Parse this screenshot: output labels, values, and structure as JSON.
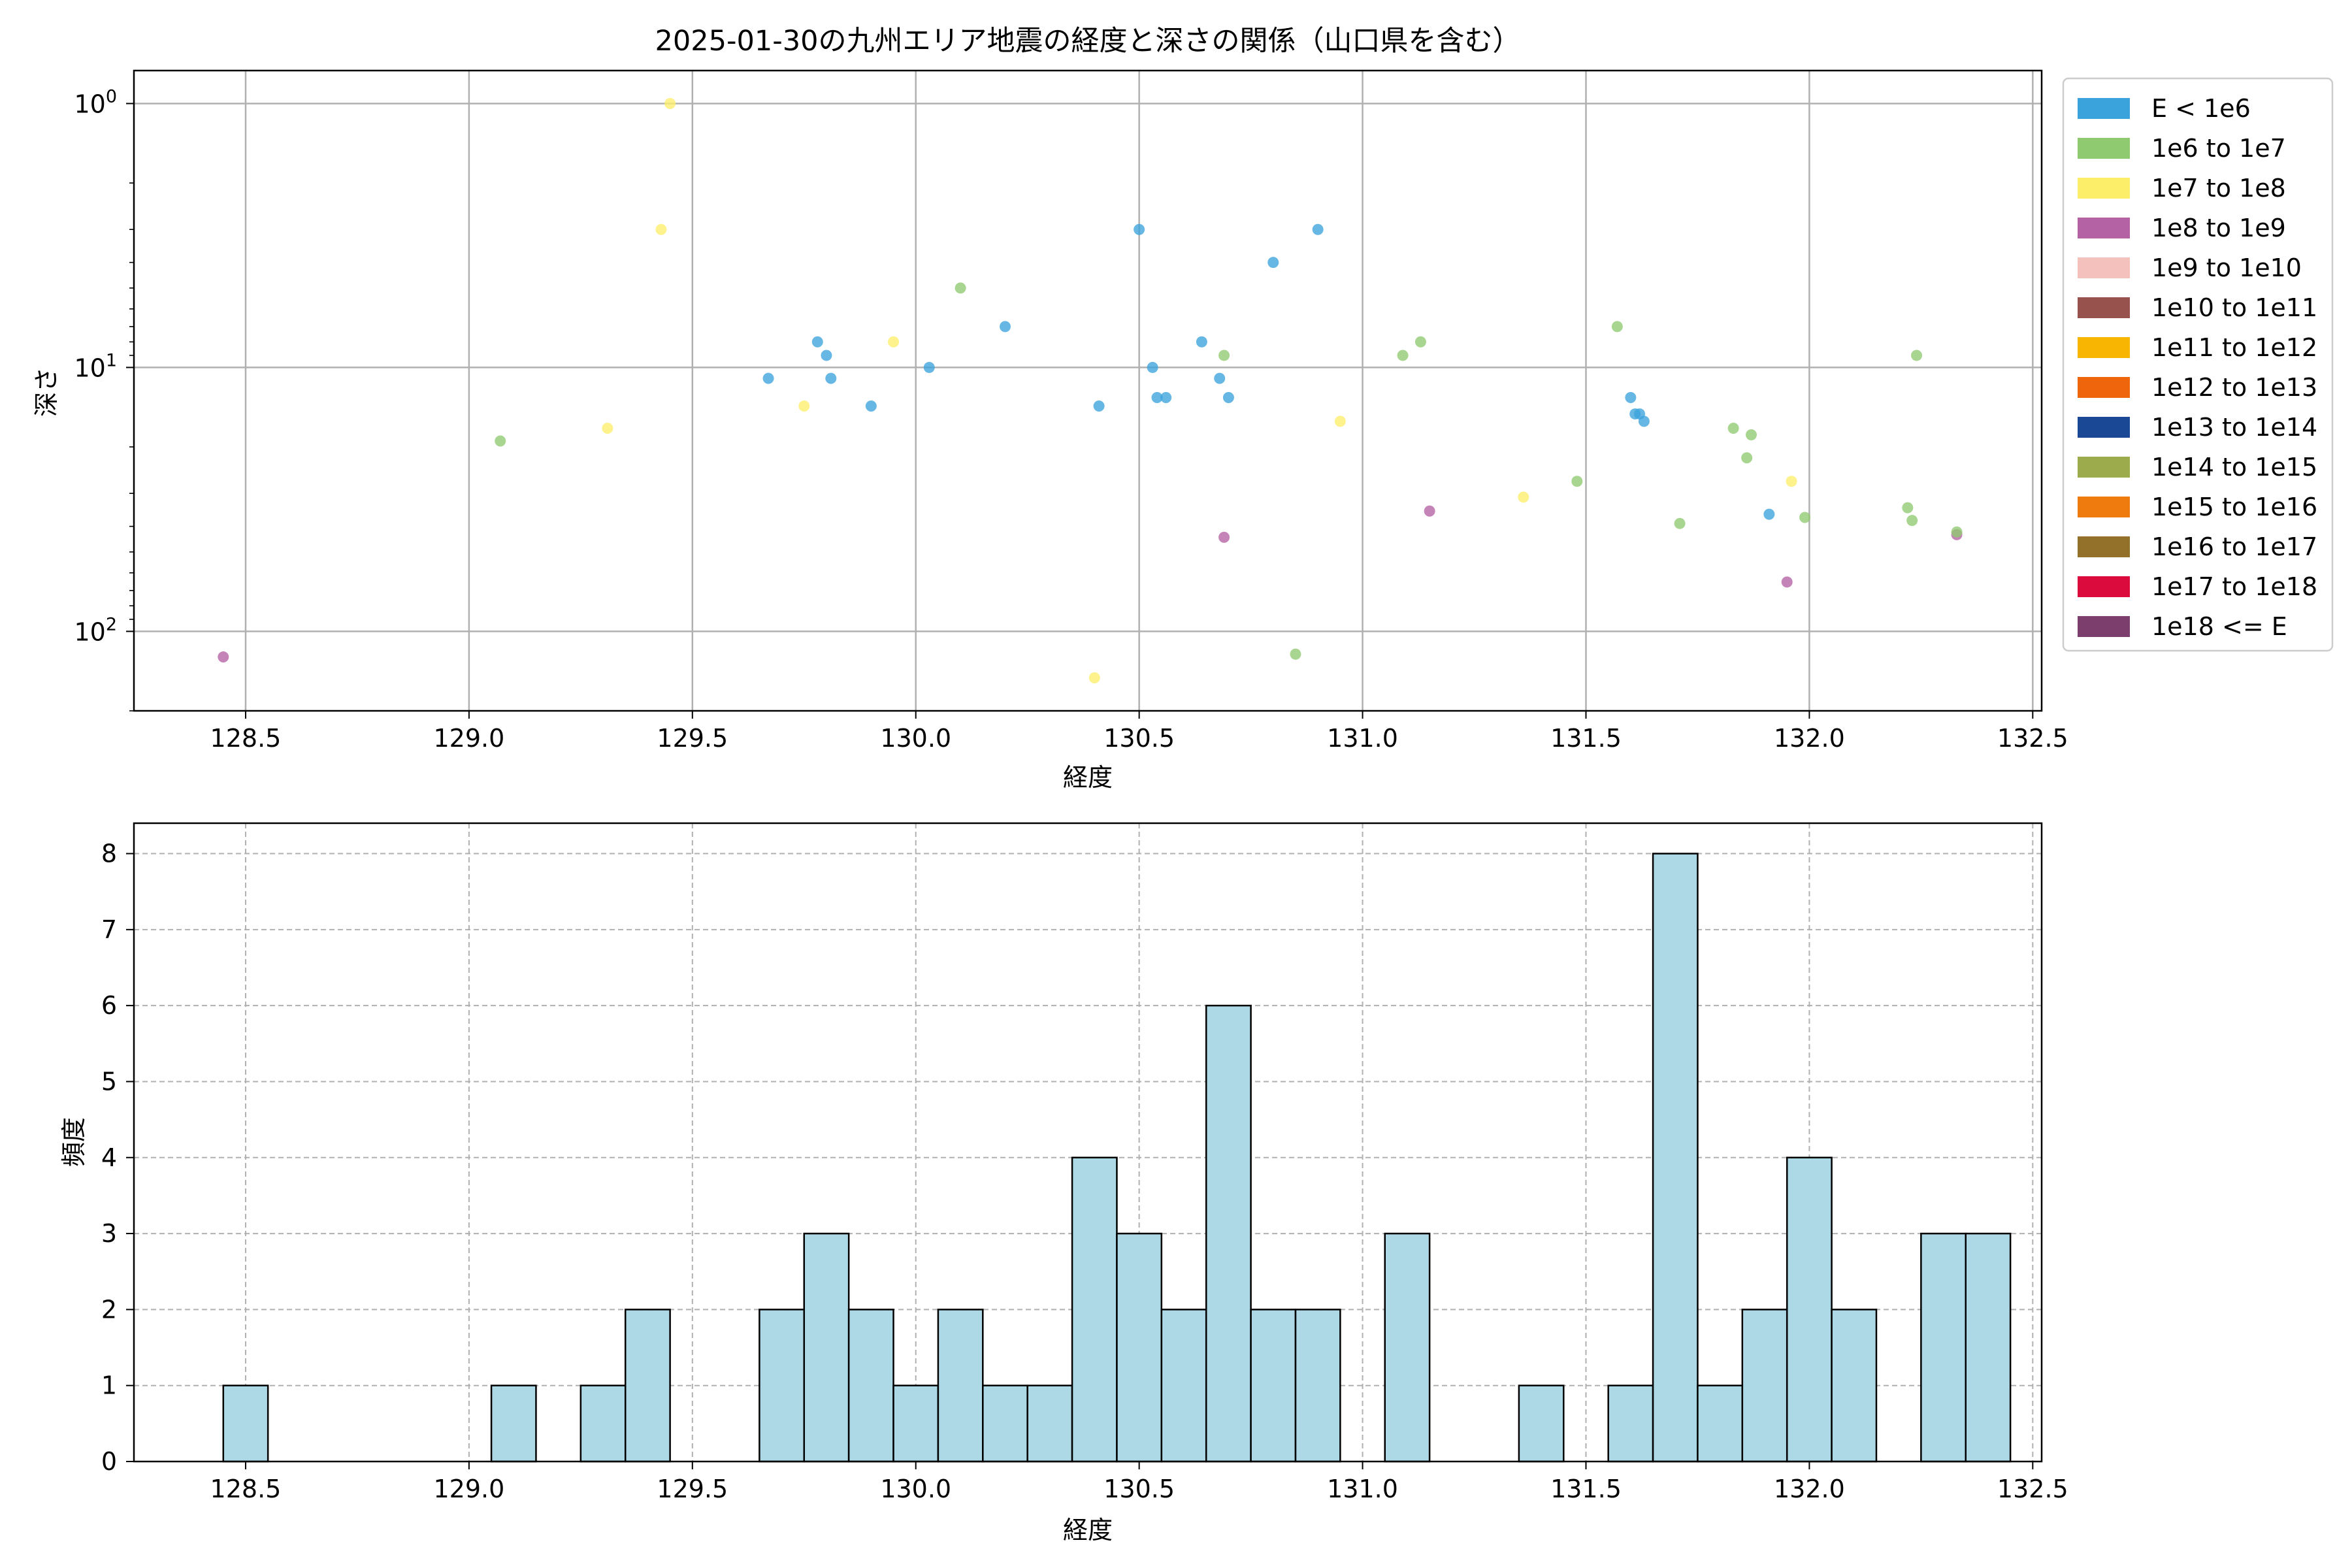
{
  "chart_data": [
    {
      "type": "scatter",
      "title": "2025-01-30の九州エリア地震の経度と深さの関係（山口県を含む）",
      "xlabel": "経度",
      "ylabel": "深さ",
      "xlim": [
        128.25,
        132.52
      ],
      "ylim": [
        200,
        0.75
      ],
      "yscale": "log",
      "y_inverted": true,
      "x_ticks": [
        128.5,
        129.0,
        129.5,
        130.0,
        130.5,
        131.0,
        131.5,
        132.0,
        132.5
      ],
      "x_tick_labels": [
        "128.5",
        "129.0",
        "129.5",
        "130.0",
        "130.5",
        "131.0",
        "131.5",
        "132.0",
        "132.5"
      ],
      "y_ticks": [
        1,
        10,
        100
      ],
      "y_tick_labels": [
        "10",
        "10",
        "10"
      ],
      "y_tick_exponents": [
        "0",
        "1",
        "2"
      ],
      "grid": true,
      "legend_position": "outside-right",
      "legend": [
        {
          "label": "E < 1e6",
          "color": "#3ba3dc"
        },
        {
          "label": "1e6 to 1e7",
          "color": "#8fc970"
        },
        {
          "label": "1e7 to 1e8",
          "color": "#fdee6a"
        },
        {
          "label": "1e8 to 1e9",
          "color": "#b562a4"
        },
        {
          "label": "1e9 to 1e10",
          "color": "#f5c1bd"
        },
        {
          "label": "1e10 to 1e11",
          "color": "#98524e"
        },
        {
          "label": "1e11 to 1e12",
          "color": "#f8b501"
        },
        {
          "label": "1e12 to 1e13",
          "color": "#ef650b"
        },
        {
          "label": "1e13 to 1e14",
          "color": "#1b4894"
        },
        {
          "label": "1e14 to 1e15",
          "color": "#9cac4c"
        },
        {
          "label": "1e15 to 1e16",
          "color": "#ef7a0d"
        },
        {
          "label": "1e16 to 1e17",
          "color": "#94712b"
        },
        {
          "label": "1e17 to 1e18",
          "color": "#dc0b3d"
        },
        {
          "label": "1e18 <= E",
          "color": "#7b3e6d"
        }
      ],
      "points": [
        {
          "x": 128.45,
          "y": 125,
          "c": 3
        },
        {
          "x": 129.07,
          "y": 19,
          "c": 1
        },
        {
          "x": 129.31,
          "y": 17,
          "c": 2
        },
        {
          "x": 129.43,
          "y": 3,
          "c": 2
        },
        {
          "x": 129.45,
          "y": 1,
          "c": 2
        },
        {
          "x": 129.67,
          "y": 11,
          "c": 0
        },
        {
          "x": 129.75,
          "y": 14,
          "c": 2
        },
        {
          "x": 129.78,
          "y": 8,
          "c": 0
        },
        {
          "x": 129.8,
          "y": 9,
          "c": 0
        },
        {
          "x": 129.81,
          "y": 11,
          "c": 0
        },
        {
          "x": 129.9,
          "y": 14,
          "c": 0
        },
        {
          "x": 129.95,
          "y": 8,
          "c": 2
        },
        {
          "x": 130.03,
          "y": 10,
          "c": 0
        },
        {
          "x": 130.1,
          "y": 5,
          "c": 1
        },
        {
          "x": 130.2,
          "y": 7,
          "c": 0
        },
        {
          "x": 130.4,
          "y": 150,
          "c": 2
        },
        {
          "x": 130.41,
          "y": 14,
          "c": 0
        },
        {
          "x": 130.5,
          "y": 3,
          "c": 0
        },
        {
          "x": 130.53,
          "y": 10,
          "c": 0
        },
        {
          "x": 130.54,
          "y": 13,
          "c": 0
        },
        {
          "x": 130.56,
          "y": 13,
          "c": 0
        },
        {
          "x": 130.64,
          "y": 8,
          "c": 0
        },
        {
          "x": 130.68,
          "y": 11,
          "c": 0
        },
        {
          "x": 130.69,
          "y": 44,
          "c": 3
        },
        {
          "x": 130.69,
          "y": 9,
          "c": 1
        },
        {
          "x": 130.7,
          "y": 13,
          "c": 0
        },
        {
          "x": 130.8,
          "y": 4,
          "c": 0
        },
        {
          "x": 130.85,
          "y": 122,
          "c": 1
        },
        {
          "x": 130.9,
          "y": 3,
          "c": 0
        },
        {
          "x": 130.95,
          "y": 16,
          "c": 2
        },
        {
          "x": 131.09,
          "y": 9,
          "c": 1
        },
        {
          "x": 131.13,
          "y": 8,
          "c": 1
        },
        {
          "x": 131.15,
          "y": 35,
          "c": 3
        },
        {
          "x": 131.36,
          "y": 31,
          "c": 2
        },
        {
          "x": 131.48,
          "y": 27,
          "c": 1
        },
        {
          "x": 131.57,
          "y": 7,
          "c": 1
        },
        {
          "x": 131.6,
          "y": 13,
          "c": 0
        },
        {
          "x": 131.61,
          "y": 15,
          "c": 0
        },
        {
          "x": 131.62,
          "y": 15,
          "c": 0
        },
        {
          "x": 131.63,
          "y": 16,
          "c": 0
        },
        {
          "x": 131.71,
          "y": 39,
          "c": 1
        },
        {
          "x": 131.83,
          "y": 17,
          "c": 1
        },
        {
          "x": 131.86,
          "y": 22,
          "c": 1
        },
        {
          "x": 131.87,
          "y": 18,
          "c": 1
        },
        {
          "x": 131.91,
          "y": 36,
          "c": 0
        },
        {
          "x": 131.95,
          "y": 65,
          "c": 3
        },
        {
          "x": 131.96,
          "y": 27,
          "c": 2
        },
        {
          "x": 131.99,
          "y": 37,
          "c": 1
        },
        {
          "x": 132.22,
          "y": 34,
          "c": 1
        },
        {
          "x": 132.23,
          "y": 38,
          "c": 1
        },
        {
          "x": 132.24,
          "y": 9,
          "c": 1
        },
        {
          "x": 132.33,
          "y": 43,
          "c": 3
        },
        {
          "x": 132.33,
          "y": 42,
          "c": 1
        }
      ]
    },
    {
      "type": "bar",
      "xlabel": "経度",
      "ylabel": "頻度",
      "xlim": [
        128.25,
        132.52
      ],
      "ylim": [
        0,
        8.4
      ],
      "x_ticks": [
        128.5,
        129.0,
        129.5,
        130.0,
        130.5,
        131.0,
        131.5,
        132.0,
        132.5
      ],
      "x_tick_labels": [
        "128.5",
        "129.0",
        "129.5",
        "130.0",
        "130.5",
        "131.0",
        "131.5",
        "132.0",
        "132.5"
      ],
      "y_ticks": [
        0,
        1,
        2,
        3,
        4,
        5,
        6,
        7,
        8
      ],
      "y_tick_labels": [
        "0",
        "1",
        "2",
        "3",
        "4",
        "5",
        "6",
        "7",
        "8"
      ],
      "grid": true,
      "bar_color": "#add8e6",
      "bin_start": 128.45,
      "bin_width": 0.1,
      "counts": [
        1,
        0,
        0,
        0,
        0,
        0,
        1,
        0,
        1,
        2,
        0,
        0,
        2,
        3,
        2,
        1,
        2,
        1,
        1,
        4,
        3,
        2,
        6,
        2,
        2,
        0,
        3,
        0,
        0,
        1,
        0,
        1,
        8,
        1,
        2,
        4,
        2,
        0,
        3,
        3
      ]
    }
  ]
}
